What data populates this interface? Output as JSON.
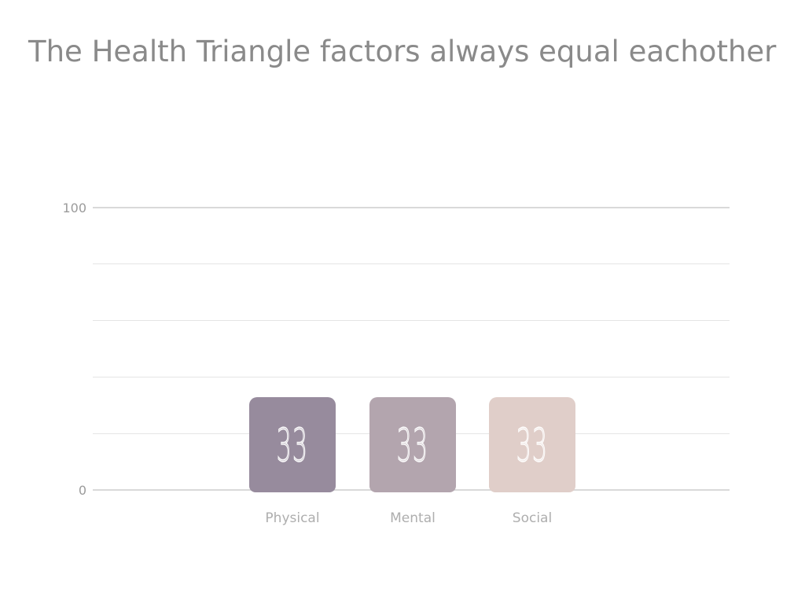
{
  "title": "The Health Triangle factors always equal eachother",
  "chart_data": {
    "type": "bar",
    "title": "The Health Triangle factors always equal eachother",
    "categories": [
      "Physical",
      "Mental",
      "Social"
    ],
    "values": [
      33,
      33,
      33
    ],
    "bar_labels": [
      "33",
      "33",
      "33"
    ],
    "bar_colors": [
      "#978B9D",
      "#B3A5AE",
      "#E0CEC9"
    ],
    "xlabel": "",
    "ylabel": "",
    "ylim": [
      0,
      100
    ],
    "ytick_labels": [
      "100",
      "0"
    ],
    "gridline_values": [
      100,
      80,
      60,
      40,
      20,
      0
    ],
    "grid": true,
    "legend": "none"
  },
  "colors": {
    "background": "#ffffff",
    "title_text": "#8a8a8a",
    "tick_text": "#9b9b9b",
    "category_text": "#aeaeae",
    "gridline_major": "#d9d9d9",
    "gridline_minor": "#e5e5e5",
    "bar_value_text": "#ffffff"
  }
}
